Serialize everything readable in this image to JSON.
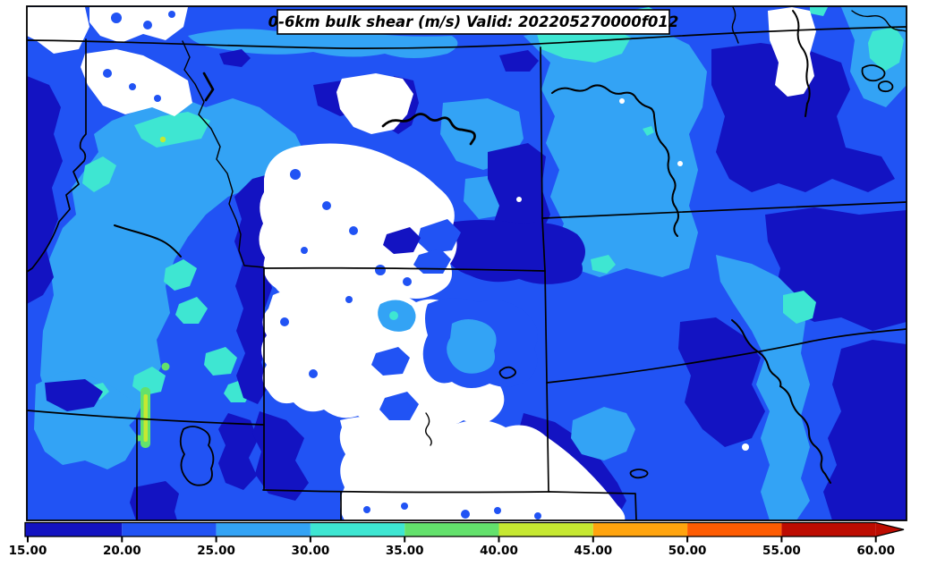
{
  "title": {
    "text": "0-6km bulk shear (m/s) Valid: 202205270000f012"
  },
  "chart_data": {
    "type": "heatmap",
    "title": "0-6km bulk shear (m/s) Valid: 202205270000f012",
    "variable": "0-6km bulk shear",
    "units": "m/s",
    "valid_label": "202205270000f012",
    "colorbar_ticks": [
      15,
      20,
      25,
      30,
      35,
      40,
      45,
      50,
      55,
      60
    ],
    "colorbar_tick_labels": [
      "15.00",
      "20.00",
      "25.00",
      "30.00",
      "35.00",
      "40.00",
      "45.00",
      "50.00",
      "55.00",
      "60.00"
    ],
    "colorbar_orientation": "horizontal",
    "colorbar_extend": "max-arrow-right",
    "under_color": "#ffffff",
    "over_color": "#bd0c01",
    "levels": [
      {
        "bin": "b15",
        "range": "15-20",
        "color": "#1313c2"
      },
      {
        "bin": "b20",
        "range": "20-25",
        "color": "#2153f4"
      },
      {
        "bin": "b25",
        "range": "25-30",
        "color": "#33a3f5"
      },
      {
        "bin": "b30",
        "range": "30-35",
        "color": "#3ee6d2"
      },
      {
        "bin": "b35",
        "range": "35-40",
        "color": "#63e16c"
      },
      {
        "bin": "b40",
        "range": "40-45",
        "color": "#c6e831"
      },
      {
        "bin": "b45",
        "range": "45-50",
        "color": "#ffa40e"
      },
      {
        "bin": "b50",
        "range": "50-55",
        "color": "#fe5c02"
      },
      {
        "bin": "b55",
        "range": "55-60",
        "color": "#bd0c01"
      }
    ],
    "boundary_color": "#000000",
    "frame_color": "#000000"
  }
}
